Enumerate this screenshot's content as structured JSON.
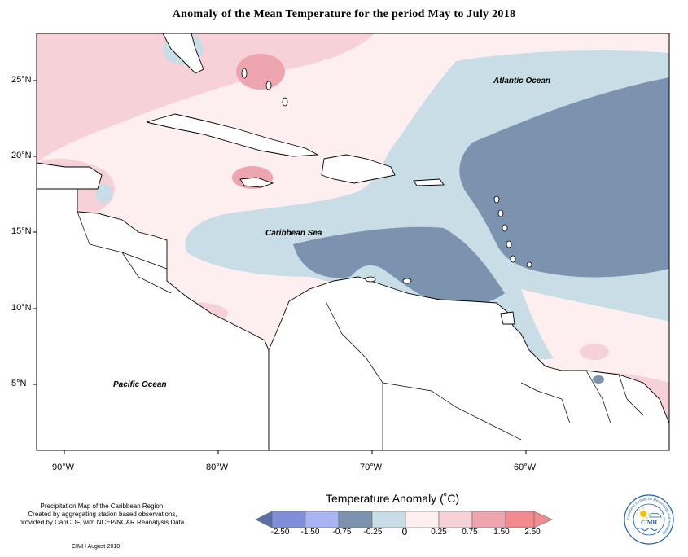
{
  "title": "Anomaly of the Mean Temperature for the period May to July 2018",
  "map": {
    "lat_labels": [
      "25°N",
      "20°N",
      "15°N",
      "10°N",
      "5°N"
    ],
    "lon_labels": [
      "90°W",
      "80°W",
      "70°W",
      "60°W"
    ],
    "ocean_labels": {
      "atlantic": "Atlantic Ocean",
      "caribbean": "Caribbean Sea",
      "pacific": "Pacific Ocean"
    }
  },
  "legend": {
    "title": "Temperature Anomaly (˚C)",
    "ticks": [
      "-2.50",
      "-1.50",
      "-0.75",
      "-0.25",
      "0",
      "0.25",
      "0.75",
      "1.50",
      "2.50"
    ],
    "colors": [
      "#5c6fa8",
      "#7f8fd8",
      "#a9b4f2",
      "#7b93ae",
      "#c9dde6",
      "#fdeff0",
      "#f6d1d8",
      "#eda6b0",
      "#f28a90"
    ]
  },
  "credits": {
    "line1": "Precipitation Map of the Caribbean Region.",
    "line2": "Created by aggregating station based observations,",
    "line3": "provided by CariCOF, with NCEP/NCAR Reanalysis Data.",
    "footer": "CIMH August-2018"
  },
  "logo": {
    "text": "CIMH",
    "ring_text": "Caribbean Institute for Meteorology and Hydrology"
  },
  "colors": {
    "strong_cool": "#7b93ae",
    "weak_cool": "#c9dde6",
    "weak_warm": "#fdeff0",
    "warm": "#f6d1d8",
    "strong_warm": "#eda6b0"
  }
}
